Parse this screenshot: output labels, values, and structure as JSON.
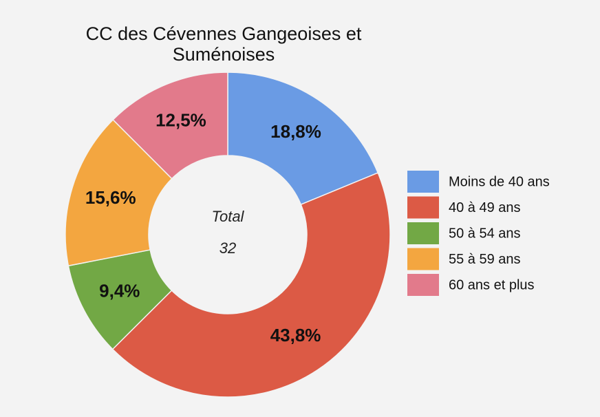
{
  "chart_data": {
    "type": "donut",
    "title": "CC des Cévennes Gangeoises et Suménoises",
    "categories": [
      "Moins de 40 ans",
      "40 à 49 ans",
      "50 à 54 ans",
      "55 à 59 ans",
      "60 ans et plus"
    ],
    "values": [
      18.8,
      43.8,
      9.4,
      15.6,
      12.5
    ],
    "value_labels": [
      "18,8%",
      "43,8%",
      "9,4%",
      "15,6%",
      "12,5%"
    ],
    "colors": [
      "#6a9be4",
      "#dc5a45",
      "#72a845",
      "#f3a640",
      "#e27a8b"
    ],
    "center_label": "Total",
    "total": 32,
    "legend": "right"
  }
}
